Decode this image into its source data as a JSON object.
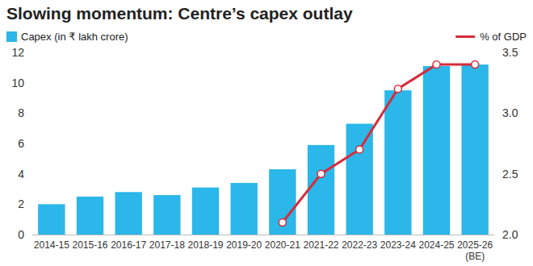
{
  "chart_data": {
    "type": "bar",
    "title": "Slowing momentum: Centre’s capex outlay",
    "categories": [
      "2014-15",
      "2015-16",
      "2016-17",
      "2017-18",
      "2018-19",
      "2019-20",
      "2020-21",
      "2021-22",
      "2022-23",
      "2023-24",
      "2024-25",
      "2025-26 (BE)"
    ],
    "series": [
      {
        "name": "Capex (in ₹ lakh crore)",
        "type": "bar",
        "color": "#2bb7e9",
        "values": [
          2.0,
          2.5,
          2.8,
          2.6,
          3.1,
          3.4,
          4.3,
          5.9,
          7.3,
          9.5,
          11.1,
          11.2
        ]
      },
      {
        "name": "% of GDP",
        "type": "line",
        "axis": "y2",
        "color": "#d62b3b",
        "marker": "circle",
        "values": [
          null,
          null,
          null,
          null,
          null,
          null,
          2.1,
          2.5,
          2.7,
          3.2,
          3.4,
          3.4
        ]
      }
    ],
    "ylim": [
      0,
      12
    ],
    "yticks": [
      0,
      2,
      4,
      6,
      8,
      10,
      12
    ],
    "y2lim": [
      2,
      3.5
    ],
    "y2ticks": [
      {
        "value": 2,
        "label": "2.0"
      },
      2.5,
      {
        "value": 3,
        "label": "3.0"
      },
      3.5
    ],
    "grid": false,
    "legend": "top"
  }
}
